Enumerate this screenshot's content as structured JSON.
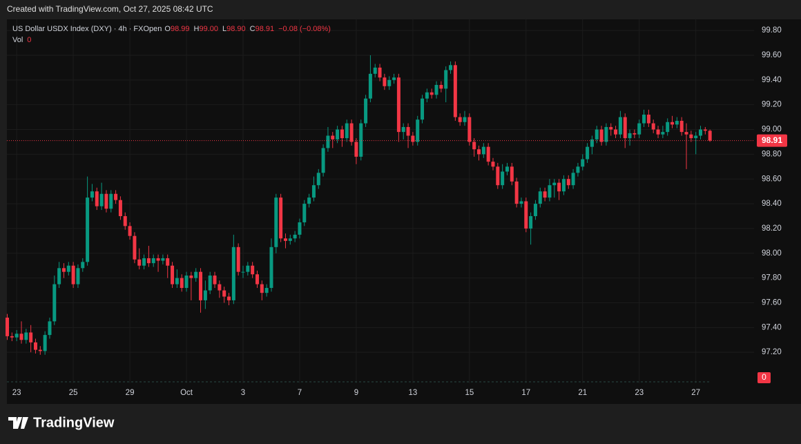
{
  "header": {
    "title": "Created with TradingView.com, Oct 27, 2025 08:42 UTC"
  },
  "footer": {
    "brand": "TradingView"
  },
  "legend": {
    "symbol": "US Dollar USDX Index (DXY) · 4h · FXOpen",
    "ohlc_letters": [
      "O",
      "H",
      "L",
      "C"
    ],
    "ohlc_values": [
      "98.99",
      "99.00",
      "98.90",
      "98.91"
    ],
    "change": "−0.08 (−0.08%)",
    "volume_label": "Vol",
    "volume_value": "0"
  },
  "chart_data": {
    "type": "candlestick",
    "up_color": "#089981",
    "down_color": "#f23645",
    "ylim": [
      96.95,
      99.89
    ],
    "yticks": [
      {
        "value": 97.2,
        "label": "97.20"
      },
      {
        "value": 97.4,
        "label": "97.40"
      },
      {
        "value": 97.6,
        "label": "97.60"
      },
      {
        "value": 97.8,
        "label": "97.80"
      },
      {
        "value": 98,
        "label": "98.00"
      },
      {
        "value": 98.2,
        "label": "98.20"
      },
      {
        "value": 98.4,
        "label": "98.40"
      },
      {
        "value": 98.6,
        "label": "98.60"
      },
      {
        "value": 98.8,
        "label": "98.80"
      },
      {
        "value": 99,
        "label": "99.00"
      },
      {
        "value": 99.2,
        "label": "99.20"
      },
      {
        "value": 99.4,
        "label": "99.40"
      },
      {
        "value": 99.6,
        "label": "99.60"
      },
      {
        "value": 99.8,
        "label": "99.80"
      }
    ],
    "xticks": [
      {
        "value": 2,
        "label": "23"
      },
      {
        "value": 14,
        "label": "25"
      },
      {
        "value": 26,
        "label": "29"
      },
      {
        "value": 38,
        "label": "Oct"
      },
      {
        "value": 50,
        "label": "3"
      },
      {
        "value": 62,
        "label": "7"
      },
      {
        "value": 74,
        "label": "9"
      },
      {
        "value": 86,
        "label": "13"
      },
      {
        "value": 98,
        "label": "15"
      },
      {
        "value": 110,
        "label": "17"
      },
      {
        "value": 122,
        "label": "21"
      },
      {
        "value": 134,
        "label": "23"
      },
      {
        "value": 146,
        "label": "27"
      }
    ],
    "grid": true,
    "last_price_label": "98.91",
    "volume_axis_label": "0",
    "open": [
      97.48,
      97.33,
      97.32,
      97.35,
      97.3,
      97.36,
      97.28,
      97.22,
      97.21,
      97.34,
      97.45,
      97.75,
      97.88,
      97.85,
      97.9,
      97.75,
      97.88,
      97.93,
      98.45,
      98.5,
      98.38,
      98.48,
      98.36,
      98.48,
      98.43,
      98.3,
      98.22,
      98.14,
      97.95,
      97.9,
      97.96,
      97.92,
      97.96,
      97.94,
      97.96,
      97.9,
      97.75,
      97.8,
      97.72,
      97.82,
      97.8,
      97.85,
      97.62,
      97.7,
      97.82,
      97.75,
      97.7,
      97.65,
      97.62,
      98.05,
      97.85,
      97.85,
      97.9,
      97.83,
      97.75,
      97.68,
      97.72,
      98.05,
      98.45,
      98.12,
      98.1,
      98.12,
      98.15,
      98.25,
      98.4,
      98.45,
      98.55,
      98.65,
      98.85,
      98.95,
      98.92,
      99.0,
      98.93,
      99.05,
      98.9,
      98.78,
      99.05,
      99.25,
      99.45,
      99.5,
      99.42,
      99.35,
      99.4,
      99.42,
      98.98,
      99.02,
      98.95,
      98.9,
      99.08,
      99.25,
      99.3,
      99.28,
      99.36,
      99.33,
      99.48,
      99.52,
      99.1,
      99.06,
      99.1,
      98.9,
      98.84,
      98.8,
      98.86,
      98.74,
      98.7,
      98.55,
      98.66,
      98.7,
      98.58,
      98.4,
      98.42,
      98.2,
      98.3,
      98.4,
      98.5,
      98.45,
      98.55,
      98.57,
      98.5,
      98.6,
      98.55,
      98.65,
      98.7,
      98.76,
      98.86,
      98.92,
      99.0,
      98.9,
      99.02,
      99.0,
      98.96,
      99.1,
      98.93,
      98.97,
      98.96,
      99.05,
      99.12,
      99.05,
      99.0,
      98.96,
      98.98,
      99.06,
      99.04,
      99.07,
      98.98,
      98.96,
      98.93,
      98.95,
      99.0,
      98.99
    ],
    "high": [
      97.51,
      97.36,
      97.38,
      97.45,
      97.39,
      97.42,
      97.31,
      97.25,
      97.37,
      97.48,
      97.82,
      97.93,
      97.92,
      97.93,
      97.93,
      97.91,
      97.96,
      98.62,
      98.56,
      98.53,
      98.57,
      98.51,
      98.51,
      98.51,
      98.46,
      98.33,
      98.25,
      98.17,
      98.04,
      97.99,
      98.06,
      97.99,
      97.99,
      97.99,
      97.99,
      97.93,
      97.87,
      97.83,
      97.85,
      97.85,
      97.88,
      97.88,
      97.78,
      97.85,
      97.85,
      97.78,
      97.73,
      97.68,
      98.15,
      98.08,
      97.9,
      97.93,
      97.93,
      97.86,
      97.78,
      97.75,
      98.12,
      98.48,
      98.48,
      98.16,
      98.15,
      98.18,
      98.28,
      98.43,
      98.48,
      98.62,
      98.68,
      98.88,
      99.02,
      98.98,
      99.03,
      99.03,
      99.08,
      99.08,
      98.93,
      99.08,
      99.28,
      99.6,
      99.53,
      99.53,
      99.45,
      99.43,
      99.45,
      99.45,
      99.05,
      99.05,
      98.98,
      99.11,
      99.28,
      99.33,
      99.33,
      99.39,
      99.39,
      99.51,
      99.55,
      99.55,
      99.13,
      99.15,
      99.13,
      98.93,
      98.87,
      98.89,
      98.89,
      98.77,
      98.73,
      98.72,
      98.73,
      98.73,
      98.61,
      98.45,
      98.45,
      98.33,
      98.43,
      98.53,
      98.53,
      98.6,
      98.6,
      98.6,
      98.63,
      98.63,
      98.68,
      98.73,
      98.8,
      98.89,
      98.95,
      99.03,
      99.03,
      99.05,
      99.05,
      99.03,
      99.15,
      99.13,
      99.0,
      99.0,
      99.08,
      99.16,
      99.16,
      99.08,
      99.03,
      99.03,
      99.09,
      99.11,
      99.1,
      99.1,
      99.05,
      98.99,
      98.98,
      99.03,
      99.02,
      99.0
    ],
    "low": [
      97.3,
      97.29,
      97.29,
      97.27,
      97.27,
      97.2,
      97.19,
      97.18,
      97.18,
      97.31,
      97.42,
      97.72,
      97.8,
      97.82,
      97.72,
      97.72,
      97.85,
      97.9,
      98.42,
      98.35,
      98.35,
      98.33,
      98.33,
      98.4,
      98.27,
      98.19,
      98.11,
      97.92,
      97.87,
      97.87,
      97.89,
      97.89,
      97.85,
      97.91,
      97.8,
      97.72,
      97.72,
      97.69,
      97.69,
      97.62,
      97.77,
      97.52,
      97.55,
      97.67,
      97.72,
      97.64,
      97.6,
      97.58,
      97.59,
      97.82,
      97.8,
      97.82,
      97.8,
      97.72,
      97.62,
      97.65,
      97.69,
      98.0,
      98.09,
      98.04,
      98.07,
      98.09,
      98.12,
      98.22,
      98.37,
      98.42,
      98.52,
      98.62,
      98.82,
      98.85,
      98.89,
      98.86,
      98.9,
      98.87,
      98.72,
      98.75,
      99.02,
      99.22,
      99.42,
      99.39,
      99.32,
      99.32,
      99.37,
      98.9,
      98.92,
      98.85,
      98.87,
      98.87,
      99.05,
      99.22,
      99.25,
      99.25,
      99.3,
      99.22,
      99.45,
      99.07,
      99.03,
      99.03,
      98.87,
      98.78,
      98.75,
      98.77,
      98.71,
      98.67,
      98.52,
      98.52,
      98.63,
      98.55,
      98.37,
      98.37,
      98.17,
      98.07,
      98.27,
      98.37,
      98.42,
      98.42,
      98.45,
      98.43,
      98.47,
      98.52,
      98.52,
      98.62,
      98.67,
      98.73,
      98.8,
      98.89,
      98.87,
      98.87,
      98.95,
      98.93,
      98.93,
      98.85,
      98.87,
      98.93,
      98.93,
      99.02,
      99.02,
      98.97,
      98.93,
      98.93,
      98.95,
      99.01,
      99.01,
      98.95,
      98.68,
      98.9,
      98.8,
      98.92,
      98.96,
      98.9
    ],
    "close": [
      97.33,
      97.32,
      97.35,
      97.3,
      97.36,
      97.28,
      97.22,
      97.21,
      97.34,
      97.45,
      97.75,
      97.88,
      97.85,
      97.9,
      97.75,
      97.88,
      97.93,
      98.45,
      98.5,
      98.38,
      98.48,
      98.36,
      98.48,
      98.43,
      98.3,
      98.22,
      98.14,
      97.95,
      97.9,
      97.96,
      97.92,
      97.96,
      97.94,
      97.96,
      97.9,
      97.75,
      97.8,
      97.72,
      97.82,
      97.8,
      97.85,
      97.62,
      97.7,
      97.82,
      97.75,
      97.7,
      97.65,
      97.62,
      98.05,
      97.85,
      97.85,
      97.9,
      97.83,
      97.75,
      97.68,
      97.72,
      98.05,
      98.45,
      98.12,
      98.1,
      98.12,
      98.15,
      98.25,
      98.4,
      98.45,
      98.55,
      98.65,
      98.85,
      98.95,
      98.92,
      99.0,
      98.93,
      99.05,
      98.9,
      98.78,
      99.05,
      99.25,
      99.45,
      99.5,
      99.42,
      99.35,
      99.4,
      99.42,
      98.98,
      99.02,
      98.95,
      98.9,
      99.08,
      99.25,
      99.3,
      99.28,
      99.36,
      99.33,
      99.48,
      99.52,
      99.1,
      99.06,
      99.1,
      98.9,
      98.84,
      98.8,
      98.86,
      98.74,
      98.7,
      98.55,
      98.66,
      98.7,
      98.58,
      98.4,
      98.42,
      98.2,
      98.3,
      98.4,
      98.5,
      98.45,
      98.55,
      98.57,
      98.5,
      98.6,
      98.55,
      98.65,
      98.7,
      98.76,
      98.86,
      98.92,
      99.0,
      98.9,
      99.02,
      99.0,
      98.96,
      99.1,
      98.93,
      98.97,
      98.96,
      99.05,
      99.12,
      99.05,
      99.0,
      98.96,
      98.98,
      99.06,
      99.04,
      99.07,
      98.98,
      98.96,
      98.93,
      98.95,
      99.0,
      98.99,
      98.91
    ]
  }
}
